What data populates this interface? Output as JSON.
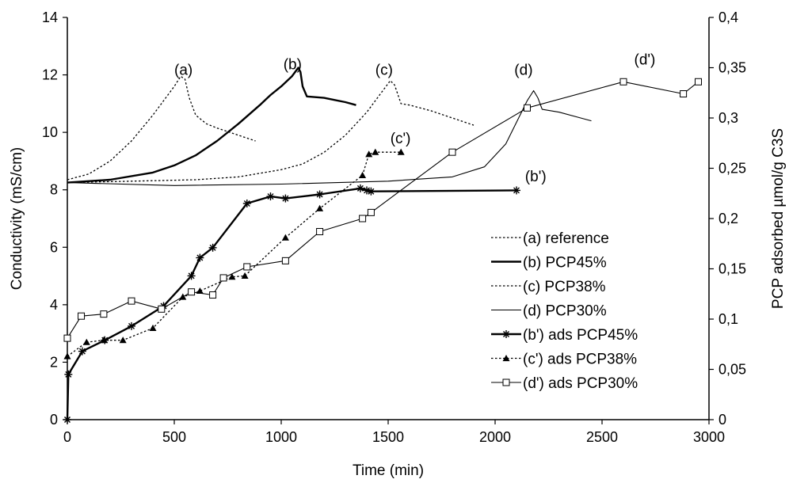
{
  "chart_data": {
    "type": "line",
    "xlabel": "Time (min)",
    "ylabel": "Conductivity (mS/cm)",
    "ylabel_right": "PCP adsorbed µmol/g C3S",
    "xlim": [
      0,
      3000
    ],
    "ylim": [
      0,
      14
    ],
    "ylim_right": [
      0,
      0.4
    ],
    "x_ticks": [
      "0",
      "500",
      "1000",
      "1500",
      "2000",
      "2500",
      "3000"
    ],
    "y_ticks": [
      "0",
      "2",
      "4",
      "6",
      "8",
      "10",
      "12",
      "14"
    ],
    "y_right_ticks": [
      "0",
      "0,05",
      "0,1",
      "0,15",
      "0,2",
      "0,25",
      "0,3",
      "0,35",
      "0,4"
    ],
    "grid": false,
    "legend_position": "lower-right",
    "series": [
      {
        "name": "(a) reference",
        "axis": "left",
        "style": "dotted",
        "marker": "none",
        "x": [
          0,
          100,
          200,
          300,
          400,
          450,
          500,
          530,
          550,
          570,
          600,
          650,
          700,
          800,
          880
        ],
        "y": [
          8.35,
          8.55,
          9.0,
          9.7,
          10.6,
          11.1,
          11.6,
          11.95,
          11.85,
          11.2,
          10.6,
          10.3,
          10.15,
          9.9,
          9.7
        ]
      },
      {
        "name": "(b) PCP45%",
        "axis": "left",
        "style": "thick",
        "marker": "none",
        "x": [
          0,
          200,
          400,
          500,
          600,
          700,
          800,
          900,
          950,
          1000,
          1050,
          1080,
          1090,
          1100,
          1120,
          1200,
          1300,
          1350
        ],
        "y": [
          8.25,
          8.35,
          8.6,
          8.85,
          9.2,
          9.7,
          10.3,
          10.95,
          11.3,
          11.6,
          11.95,
          12.25,
          12.1,
          11.6,
          11.25,
          11.2,
          11.05,
          10.95
        ]
      },
      {
        "name": "(c) PCP38%",
        "axis": "left",
        "style": "dotted",
        "marker": "none",
        "x": [
          0,
          300,
          600,
          800,
          1000,
          1100,
          1200,
          1300,
          1400,
          1470,
          1510,
          1530,
          1560,
          1600,
          1700,
          1800,
          1900
        ],
        "y": [
          8.25,
          8.3,
          8.35,
          8.45,
          8.7,
          8.9,
          9.3,
          9.9,
          10.7,
          11.4,
          11.8,
          11.65,
          11.0,
          10.95,
          10.75,
          10.5,
          10.25
        ]
      },
      {
        "name": "(d) PCP30%",
        "axis": "left",
        "style": "thin",
        "marker": "none",
        "x": [
          0,
          500,
          1000,
          1500,
          1800,
          1950,
          2050,
          2110,
          2150,
          2180,
          2200,
          2220,
          2300,
          2400,
          2450
        ],
        "y": [
          8.25,
          8.15,
          8.2,
          8.3,
          8.45,
          8.8,
          9.6,
          10.5,
          11.1,
          11.45,
          11.2,
          10.8,
          10.7,
          10.5,
          10.4
        ]
      },
      {
        "name": "(b') ads PCP45%",
        "axis": "right",
        "style": "thick",
        "marker": "star",
        "x": [
          0,
          5,
          70,
          175,
          300,
          450,
          580,
          620,
          680,
          840,
          950,
          1020,
          1180,
          1370,
          1400,
          1420,
          2100
        ],
        "y": [
          0,
          0.045,
          0.068,
          0.079,
          0.093,
          0.113,
          0.143,
          0.161,
          0.171,
          0.215,
          0.222,
          0.22,
          0.224,
          0.23,
          0.228,
          0.227,
          0.228
        ]
      },
      {
        "name": "(c') ads  PCP38%",
        "axis": "right",
        "style": "dotted",
        "marker": "triangle",
        "x": [
          0,
          90,
          170,
          260,
          400,
          540,
          620,
          770,
          830,
          1020,
          1180,
          1380,
          1410,
          1440,
          1560
        ],
        "y": [
          0.063,
          0.077,
          0.079,
          0.079,
          0.091,
          0.122,
          0.128,
          0.142,
          0.143,
          0.181,
          0.21,
          0.243,
          0.264,
          0.266,
          0.266
        ]
      },
      {
        "name": "(d') ads PCP30%",
        "axis": "right",
        "style": "thin",
        "marker": "square",
        "x": [
          0,
          65,
          170,
          300,
          440,
          580,
          680,
          730,
          840,
          1020,
          1180,
          1380,
          1420,
          1800,
          2150,
          2600,
          2880,
          2950
        ],
        "y": [
          0.081,
          0.103,
          0.105,
          0.118,
          0.11,
          0.127,
          0.124,
          0.141,
          0.152,
          0.158,
          0.187,
          0.2,
          0.206,
          0.266,
          0.31,
          0.336,
          0.324,
          0.336
        ]
      }
    ],
    "annotations": [
      {
        "text": "(a)",
        "x": 500,
        "y": 12.0,
        "axis": "left"
      },
      {
        "text": "(b)",
        "x": 1010,
        "y": 12.2,
        "axis": "left"
      },
      {
        "text": "(c)",
        "x": 1440,
        "y": 12.0,
        "axis": "left"
      },
      {
        "text": "(d)",
        "x": 2090,
        "y": 12.0,
        "axis": "left"
      },
      {
        "text": "(d')",
        "x": 2650,
        "y": 0.353,
        "axis": "right"
      },
      {
        "text": "(c')",
        "x": 1510,
        "y": 0.275,
        "axis": "right"
      },
      {
        "text": "(b')",
        "x": 2140,
        "y": 0.237,
        "axis": "right"
      }
    ]
  }
}
